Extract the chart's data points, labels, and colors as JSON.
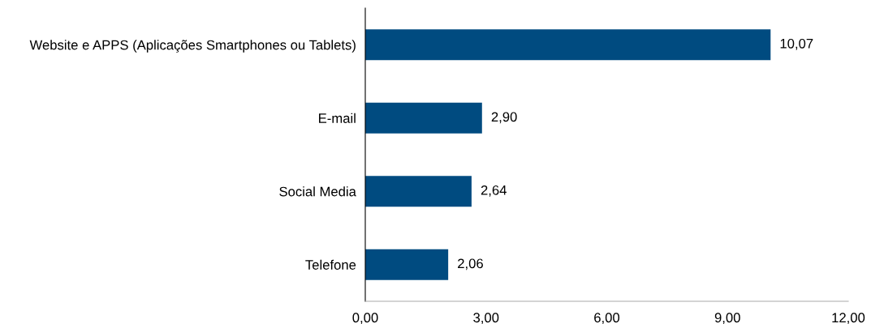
{
  "chart_data": {
    "type": "bar",
    "orientation": "horizontal",
    "categories": [
      "Website e APPS (Aplicações Smartphones ou Tablets)",
      "E-mail",
      "Social Media",
      "Telefone"
    ],
    "values": [
      10.07,
      2.9,
      2.64,
      2.06
    ],
    "value_labels": [
      "10,07",
      "2,90",
      "2,64",
      "2,06"
    ],
    "color": "#004b80",
    "xlim": [
      0,
      12
    ],
    "xticks": [
      {
        "value": 0,
        "label": "0,00"
      },
      {
        "value": 3,
        "label": "3,00"
      },
      {
        "value": 6,
        "label": "6,00"
      },
      {
        "value": 9,
        "label": "9,00"
      },
      {
        "value": 12,
        "label": "12,00"
      }
    ],
    "grid": false,
    "legend": false
  }
}
